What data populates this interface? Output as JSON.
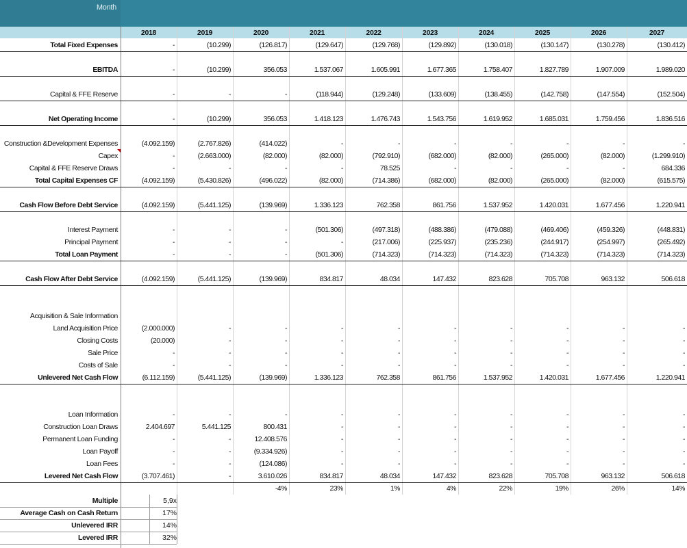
{
  "header": {
    "month_label": "Month"
  },
  "years": [
    "2018",
    "2019",
    "2020",
    "2021",
    "2022",
    "2023",
    "2024",
    "2025",
    "2026",
    "2027"
  ],
  "rows": [
    {
      "label": "Total Fixed Expenses",
      "bold": true,
      "total": true,
      "values": [
        "-",
        "(10.299)",
        "(126.817)",
        "(129.647)",
        "(129.768)",
        "(129.892)",
        "(130.018)",
        "(130.147)",
        "(130.278)",
        "(130.412)"
      ]
    },
    {
      "label": "EBITDA",
      "bold": true,
      "total": true,
      "values": [
        "-",
        "(10.299)",
        "356.053",
        "1.537.067",
        "1.605.991",
        "1.677.365",
        "1.758.407",
        "1.827.789",
        "1.907.009",
        "1.989.020"
      ]
    },
    {
      "label": "Capital & FFE  Reserve",
      "bold": false,
      "total": true,
      "values": [
        "-",
        "-",
        "-",
        "(118.944)",
        "(129.248)",
        "(133.609)",
        "(138.455)",
        "(142.758)",
        "(147.554)",
        "(152.504)"
      ]
    },
    {
      "label": "Net Operating Income",
      "bold": true,
      "total": true,
      "values": [
        "-",
        "(10.299)",
        "356.053",
        "1.418.123",
        "1.476.743",
        "1.543.756",
        "1.619.952",
        "1.685.031",
        "1.759.456",
        "1.836.516"
      ]
    },
    {
      "label": "Construction &Development Expenses",
      "bold": false,
      "total": false,
      "values": [
        "(4.092.159)",
        "(2.767.826)",
        "(414.022)",
        "-",
        "-",
        "-",
        "-",
        "-",
        "-",
        "-"
      ]
    },
    {
      "label": "Capex",
      "bold": false,
      "total": false,
      "values": [
        "-",
        "(2.663.000)",
        "(82.000)",
        "(82.000)",
        "(792.910)",
        "(682.000)",
        "(82.000)",
        "(265.000)",
        "(82.000)",
        "(1.299.910)"
      ]
    },
    {
      "label": "Capital & FFE  Reserve  Draws",
      "bold": false,
      "total": false,
      "values": [
        "-",
        "-",
        "-",
        "-",
        "78.525",
        "-",
        "-",
        "-",
        "-",
        "684.336"
      ]
    },
    {
      "label": "Total Capital Expenses CF",
      "bold": true,
      "total": true,
      "values": [
        "(4.092.159)",
        "(5.430.826)",
        "(496.022)",
        "(82.000)",
        "(714.386)",
        "(682.000)",
        "(82.000)",
        "(265.000)",
        "(82.000)",
        "(615.575)"
      ]
    },
    {
      "label": "Cash Flow Before Debt Service",
      "bold": true,
      "total": true,
      "values": [
        "(4.092.159)",
        "(5.441.125)",
        "(139.969)",
        "1.336.123",
        "762.358",
        "861.756",
        "1.537.952",
        "1.420.031",
        "1.677.456",
        "1.220.941"
      ]
    },
    {
      "label": "Interest Payment",
      "bold": false,
      "total": false,
      "values": [
        "-",
        "-",
        "-",
        "(501.306)",
        "(497.318)",
        "(488.386)",
        "(479.088)",
        "(469.406)",
        "(459.326)",
        "(448.831)"
      ]
    },
    {
      "label": "Principal Payment",
      "bold": false,
      "total": false,
      "values": [
        "-",
        "-",
        "-",
        "-",
        "(217.006)",
        "(225.937)",
        "(235.236)",
        "(244.917)",
        "(254.997)",
        "(265.492)"
      ]
    },
    {
      "label": "Total Loan Payment",
      "bold": true,
      "total": true,
      "values": [
        "-",
        "-",
        "-",
        "(501.306)",
        "(714.323)",
        "(714.323)",
        "(714.323)",
        "(714.323)",
        "(714.323)",
        "(714.323)"
      ]
    },
    {
      "label": "Cash Flow After Debt Service",
      "bold": true,
      "total": true,
      "values": [
        "(4.092.159)",
        "(5.441.125)",
        "(139.969)",
        "834.817",
        "48.034",
        "147.432",
        "823.628",
        "705.708",
        "963.132",
        "506.618"
      ]
    },
    {
      "label": "Acquisition & Sale Information",
      "bold": false,
      "total": false,
      "values": [
        "",
        "",
        "",
        "",
        "",
        "",
        "",
        "",
        "",
        ""
      ]
    },
    {
      "label": "Land Acquisition Price",
      "bold": false,
      "total": false,
      "values": [
        "(2.000.000)",
        "-",
        "-",
        "-",
        "-",
        "-",
        "-",
        "-",
        "-",
        "-"
      ]
    },
    {
      "label": "Closing Costs",
      "bold": false,
      "total": false,
      "values": [
        "(20.000)",
        "-",
        "-",
        "-",
        "-",
        "-",
        "-",
        "-",
        "-",
        "-"
      ]
    },
    {
      "label": "Sale Price",
      "bold": false,
      "total": false,
      "values": [
        "-",
        "-",
        "-",
        "-",
        "-",
        "-",
        "-",
        "-",
        "-",
        "-"
      ]
    },
    {
      "label": "Costs of Sale",
      "bold": false,
      "total": false,
      "values": [
        "-",
        "-",
        "-",
        "-",
        "-",
        "-",
        "-",
        "-",
        "-",
        "-"
      ]
    },
    {
      "label": "Unlevered Net Cash Flow",
      "bold": true,
      "total": true,
      "values": [
        "(6.112.159)",
        "(5.441.125)",
        "(139.969)",
        "1.336.123",
        "762.358",
        "861.756",
        "1.537.952",
        "1.420.031",
        "1.677.456",
        "1.220.941"
      ]
    },
    {
      "label": "Loan Information",
      "bold": false,
      "total": false,
      "values": [
        "-",
        "-",
        "-",
        "-",
        "-",
        "-",
        "-",
        "-",
        "-",
        "-"
      ]
    },
    {
      "label": "Construction Loan Draws",
      "bold": false,
      "total": false,
      "values": [
        "2.404.697",
        "5.441.125",
        "800.431",
        "-",
        "-",
        "-",
        "-",
        "-",
        "-",
        "-"
      ]
    },
    {
      "label": "Permanent Loan Funding",
      "bold": false,
      "total": false,
      "values": [
        "-",
        "-",
        "12.408.576",
        "-",
        "-",
        "-",
        "-",
        "-",
        "-",
        "-"
      ]
    },
    {
      "label": "Loan Payoff",
      "bold": false,
      "total": false,
      "values": [
        "-",
        "-",
        "(9.334.926)",
        "-",
        "-",
        "-",
        "-",
        "-",
        "-",
        "-"
      ]
    },
    {
      "label": "Loan Fees",
      "bold": false,
      "total": false,
      "values": [
        "-",
        "-",
        "(124.086)",
        "-",
        "-",
        "-",
        "-",
        "-",
        "-",
        "-"
      ]
    },
    {
      "label": "Levered Net Cash Flow",
      "bold": true,
      "total": true,
      "values": [
        "(3.707.461)",
        "-",
        "3.610.026",
        "834.817",
        "48.034",
        "147.432",
        "823.628",
        "705.708",
        "963.132",
        "506.618"
      ]
    },
    {
      "label": "",
      "bold": false,
      "total": false,
      "values": [
        "",
        "",
        "-4%",
        "23%",
        "1%",
        "4%",
        "22%",
        "19%",
        "26%",
        "14%"
      ]
    }
  ],
  "summary": [
    {
      "label": "Multiple",
      "value": "5,9x"
    },
    {
      "label": "Average Cash on Cash Return",
      "value": "17%"
    },
    {
      "label": "Unlevered IRR",
      "value": "14%"
    },
    {
      "label": "Levered IRR",
      "value": "32%"
    }
  ]
}
